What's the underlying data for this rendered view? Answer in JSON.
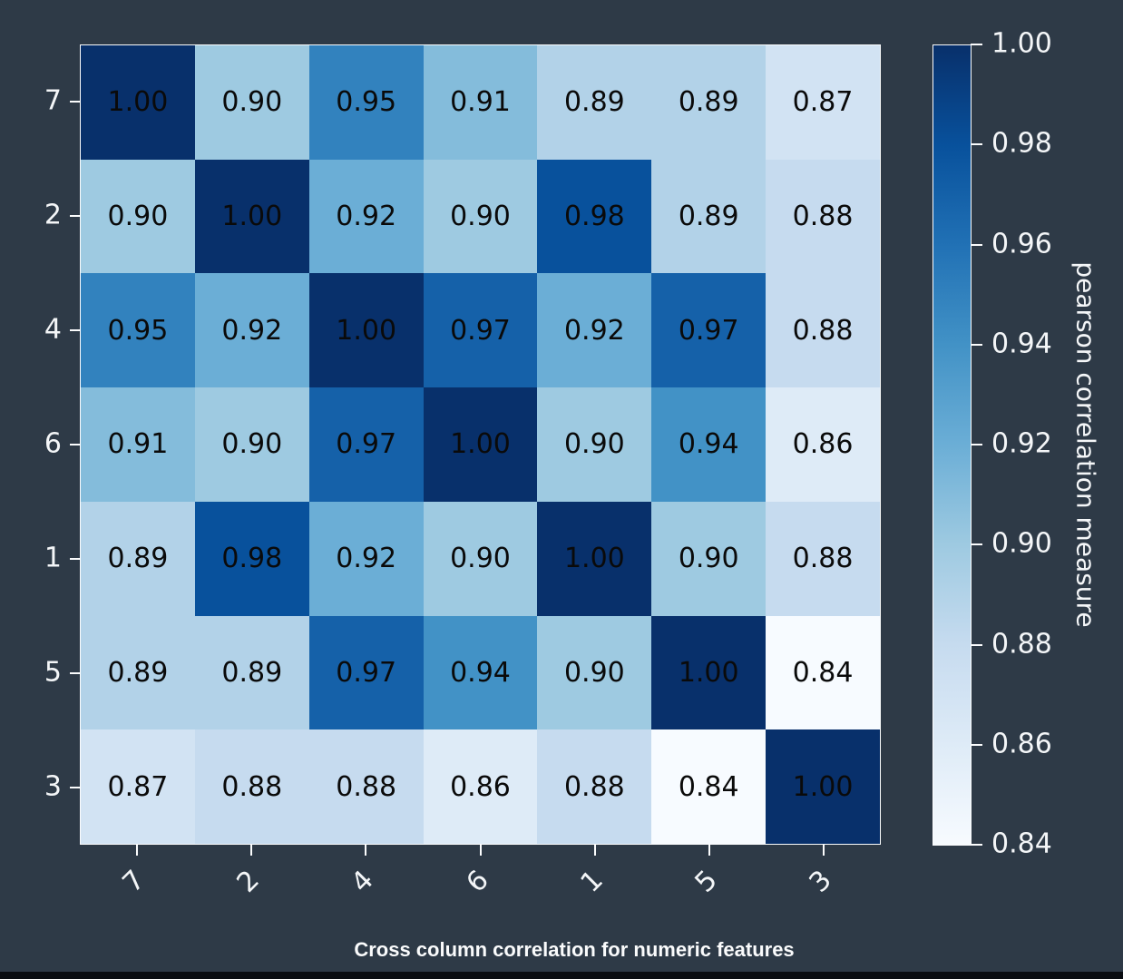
{
  "figure": {
    "background_color": "#2e3a47",
    "bottom_bar_color": "#0a0d12",
    "tick_text_color": "#f4f6f8",
    "cell_text_color": "#0a0a0a",
    "spine_color": "#fbfcfd"
  },
  "chart_data": {
    "type": "heatmap",
    "title": "Cross column correlation for numeric features",
    "x_categories": [
      "7",
      "2",
      "4",
      "6",
      "1",
      "5",
      "3"
    ],
    "y_categories": [
      "7",
      "2",
      "4",
      "6",
      "1",
      "5",
      "3"
    ],
    "values": [
      [
        1.0,
        0.9,
        0.95,
        0.91,
        0.89,
        0.89,
        0.87
      ],
      [
        0.9,
        1.0,
        0.92,
        0.9,
        0.98,
        0.89,
        0.88
      ],
      [
        0.95,
        0.92,
        1.0,
        0.97,
        0.92,
        0.97,
        0.88
      ],
      [
        0.91,
        0.9,
        0.97,
        1.0,
        0.9,
        0.94,
        0.86
      ],
      [
        0.89,
        0.98,
        0.92,
        0.9,
        1.0,
        0.9,
        0.88
      ],
      [
        0.89,
        0.89,
        0.97,
        0.94,
        0.9,
        1.0,
        0.84
      ],
      [
        0.87,
        0.88,
        0.88,
        0.86,
        0.88,
        0.84,
        1.0
      ]
    ],
    "value_decimals": 2,
    "xlabel": "",
    "ylabel": "",
    "grid": false,
    "x_tick_rotation_deg": 45,
    "colorbar": {
      "label": "pearson correlation measure",
      "tick_labels": [
        "1.00",
        "0.98",
        "0.96",
        "0.94",
        "0.92",
        "0.90",
        "0.88",
        "0.86",
        "0.84"
      ],
      "vmin": 0.84,
      "vmax": 1.0,
      "position": "right"
    },
    "colormap": {
      "name": "Blues",
      "stops": [
        "#f7fbff",
        "#deebf7",
        "#c6dbef",
        "#9ecae1",
        "#6baed6",
        "#4292c6",
        "#2171b5",
        "#08519c",
        "#08306b"
      ]
    }
  }
}
